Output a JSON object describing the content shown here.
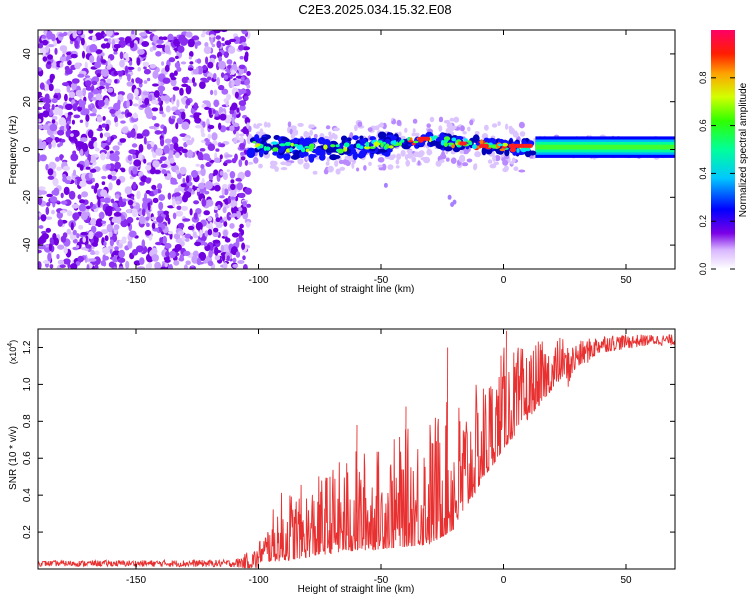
{
  "title": "C2E3.2025.034.15.32.E08",
  "chart_data": [
    {
      "type": "heatmap",
      "name": "spectrogram",
      "xlabel": "Height of straight line (km)",
      "ylabel": "Frequency (Hz)",
      "xlim": [
        -190,
        70
      ],
      "ylim": [
        -50,
        50
      ],
      "x_ticks": [
        -150,
        -100,
        -50,
        0,
        50
      ],
      "y_ticks": [
        -40,
        -20,
        0,
        20,
        40
      ],
      "noise_region_x": [
        -190,
        -104
      ],
      "signal_region_x": [
        -104,
        70
      ],
      "signal_track": {
        "x": [
          -104,
          -90,
          -75,
          -60,
          -50,
          -40,
          -30,
          -20,
          -10,
          0,
          10,
          20,
          30,
          40,
          50,
          60,
          70
        ],
        "freq": [
          2,
          1,
          0,
          1,
          2,
          3,
          4,
          3,
          2,
          1,
          1,
          1,
          1,
          1,
          1,
          1,
          1
        ]
      },
      "colorbar": {
        "label": "Normalized spectral amplitude",
        "range": [
          0,
          1
        ],
        "ticks": [
          0.0,
          0.2,
          0.4,
          0.6,
          0.8
        ]
      }
    },
    {
      "type": "line",
      "name": "snr",
      "xlabel": "Height of straight line (km)",
      "ylabel": "SNR (10 * v/v)",
      "y_exponent_label": "(x10",
      "y_exponent_power": "4",
      "y_exponent_close": ")",
      "xlim": [
        -190,
        70
      ],
      "ylim": [
        0,
        1.3
      ],
      "x_ticks": [
        -150,
        -100,
        -50,
        0,
        50
      ],
      "y_ticks": [
        0.2,
        0.4,
        0.6,
        0.8,
        1.0,
        1.2
      ],
      "color": "#e83030",
      "envelope": {
        "x": [
          -190,
          -110,
          -100,
          -90,
          -80,
          -70,
          -60,
          -50,
          -40,
          -30,
          -20,
          -10,
          0,
          10,
          20,
          30,
          40,
          50,
          60,
          70
        ],
        "base": [
          0.03,
          0.03,
          0.05,
          0.08,
          0.1,
          0.13,
          0.15,
          0.16,
          0.18,
          0.2,
          0.28,
          0.5,
          0.7,
          0.85,
          1.0,
          1.15,
          1.22,
          1.23,
          1.24,
          1.24
        ],
        "spread": [
          0.015,
          0.02,
          0.07,
          0.25,
          0.25,
          0.3,
          0.35,
          0.35,
          0.4,
          0.45,
          0.45,
          0.35,
          0.35,
          0.25,
          0.18,
          0.08,
          0.05,
          0.04,
          0.03,
          0.03
        ]
      }
    }
  ]
}
